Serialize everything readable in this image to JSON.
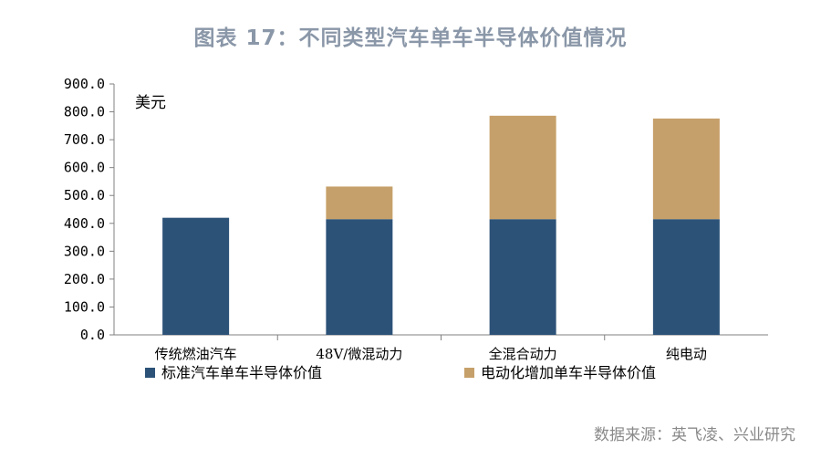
{
  "title": "图表 17：不同类型汽车单车半导体价值情况",
  "source": "数据来源：英飞凌、兴业研究",
  "chart_data": {
    "type": "bar",
    "stacked": true,
    "unit_label": "美元",
    "categories": [
      "传统燃油汽车",
      "48V/微混动力",
      "全混合动力",
      "纯电动"
    ],
    "series": [
      {
        "name": "标准汽车单车半导体价值",
        "color": "#2c5278",
        "values": [
          420,
          415,
          415,
          415
        ]
      },
      {
        "name": "电动化增加单车半导体价值",
        "color": "#c6a06a",
        "values": [
          0,
          117,
          371,
          361
        ]
      }
    ],
    "ylim": [
      0,
      900
    ],
    "yticks": [
      "0.0",
      "100.0",
      "200.0",
      "300.0",
      "400.0",
      "500.0",
      "600.0",
      "700.0",
      "800.0",
      "900.0"
    ],
    "grid": false,
    "legend_position": "bottom"
  }
}
